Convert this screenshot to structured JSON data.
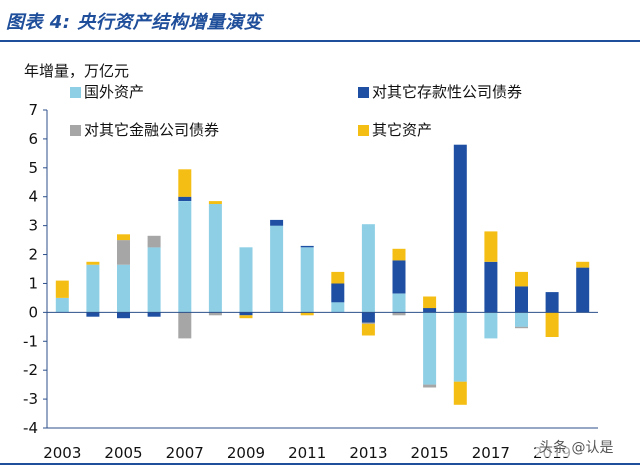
{
  "figure": {
    "title": "图表 4: 央行资产结构增量演变"
  },
  "watermark": "头条 @认是",
  "chart_data": {
    "type": "bar",
    "stacked": true,
    "ylabel": "年增量，万亿元",
    "ylim": [
      -4,
      7
    ],
    "yticks": [
      -4,
      -3,
      -2,
      -1,
      0,
      1,
      2,
      3,
      4,
      5,
      6,
      7
    ],
    "categories": [
      "2003",
      "2004",
      "2005",
      "2006",
      "2007",
      "2008",
      "2009",
      "2010",
      "2011",
      "2012",
      "2013",
      "2014",
      "2015",
      "2016",
      "2017",
      "2018",
      "2019",
      "2020"
    ],
    "xtick_labels": [
      "2003",
      "",
      "2005",
      "",
      "2007",
      "",
      "2009",
      "",
      "2011",
      "",
      "2013",
      "",
      "2015",
      "",
      "2017",
      "",
      "2019",
      ""
    ],
    "legend_position": "top",
    "series": [
      {
        "name": "国外资产",
        "color": "#8ecfe6",
        "values": [
          0.5,
          1.65,
          1.65,
          2.25,
          3.85,
          3.75,
          2.25,
          3.0,
          2.25,
          0.35,
          3.05,
          0.65,
          -2.5,
          -2.4,
          -0.9,
          -0.5,
          0.0,
          0.0
        ]
      },
      {
        "name": "对其它存款性公司债券",
        "color": "#1f4fa3",
        "values": [
          0.0,
          -0.15,
          -0.2,
          -0.15,
          0.15,
          0.0,
          -0.1,
          0.2,
          0.05,
          0.65,
          -0.35,
          1.15,
          0.15,
          5.8,
          1.75,
          0.9,
          0.7,
          1.55
        ]
      },
      {
        "name": "对其它金融公司债券",
        "color": "#a6a6a6",
        "values": [
          0.0,
          0.0,
          0.85,
          0.4,
          -0.9,
          -0.1,
          0.0,
          0.0,
          0.0,
          0.0,
          -0.05,
          -0.1,
          -0.1,
          0.0,
          0.0,
          -0.05,
          0.0,
          0.0
        ]
      },
      {
        "name": "其它资产",
        "color": "#f5be14",
        "values": [
          0.6,
          0.1,
          0.2,
          0.0,
          0.95,
          0.1,
          -0.1,
          0.0,
          -0.1,
          0.4,
          -0.4,
          0.4,
          0.4,
          -0.8,
          1.05,
          0.5,
          -0.85,
          0.2
        ]
      }
    ]
  }
}
